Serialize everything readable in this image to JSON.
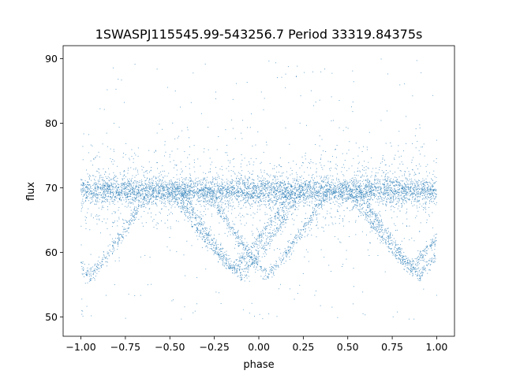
{
  "chart_data": {
    "type": "scatter",
    "title": "1SWASPJ115545.99-543256.7 Period 33319.84375s",
    "xlabel": "phase",
    "ylabel": "flux",
    "xlim": [
      -1.1,
      1.1
    ],
    "ylim": [
      47,
      92
    ],
    "xticks": [
      -1.0,
      -0.75,
      -0.5,
      -0.25,
      0.0,
      0.25,
      0.5,
      0.75,
      1.0
    ],
    "xtick_labels": [
      "−1.00",
      "−0.75",
      "−0.50",
      "−0.25",
      "0.00",
      "0.25",
      "0.50",
      "0.75",
      "1.00"
    ],
    "yticks": [
      50,
      60,
      70,
      80,
      90
    ],
    "ytick_labels": [
      "50",
      "60",
      "70",
      "80",
      "90"
    ],
    "grid": false,
    "point_color": "#1f77b4",
    "series": [
      {
        "baseline_flux": 69.5,
        "phase_range": [
          -1.0,
          1.0
        ],
        "primary_eclipse": {
          "phases": [
            -0.95,
            0.05,
            -0.1,
            0.9
          ],
          "min_flux": 56.5
        },
        "secondary_eclipse": {
          "phases": [
            -0.15,
            0.85
          ],
          "min_flux": 57.5
        }
      }
    ]
  }
}
